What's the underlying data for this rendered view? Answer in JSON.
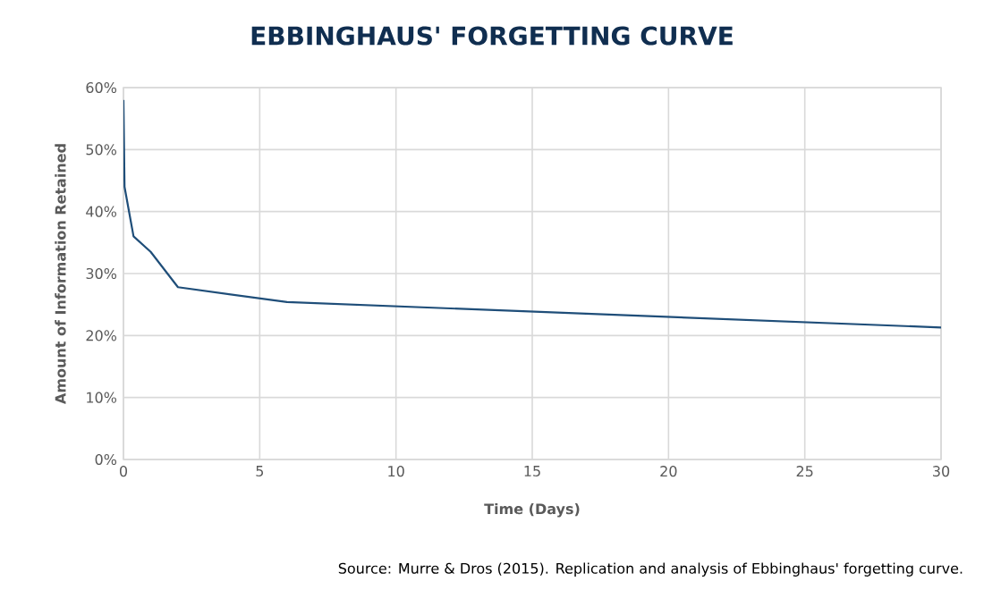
{
  "chart_data": {
    "type": "line",
    "title": "EBBINGHAUS' FORGETTING CURVE",
    "xlabel": "Time (Days)",
    "ylabel": "Amount of Information Retained",
    "x": [
      0,
      0.04,
      0.37,
      1,
      2,
      6,
      30
    ],
    "series": [
      {
        "color": "#1f4e79",
        "values": [
          58,
          44,
          36,
          33.5,
          27.8,
          25.4,
          21.3
        ]
      }
    ],
    "xlim": [
      0,
      30
    ],
    "xticks": [
      0,
      5,
      10,
      15,
      20,
      25,
      30
    ],
    "ylim": [
      0,
      60
    ],
    "yticks": [
      {
        "value": 0,
        "label": "0%"
      },
      {
        "value": 10,
        "label": "10%"
      },
      {
        "value": 20,
        "label": "20%"
      },
      {
        "value": 30,
        "label": "30%"
      },
      {
        "value": 40,
        "label": "40%"
      },
      {
        "value": 50,
        "label": "50%"
      },
      {
        "value": 60,
        "label": "60%"
      }
    ],
    "grid": true,
    "marker": "none",
    "line_style": "solid",
    "annotations": [
      "Source: Murre & Dros (2015). Replication and analysis of Ebbinghaus' forgetting curve."
    ]
  }
}
